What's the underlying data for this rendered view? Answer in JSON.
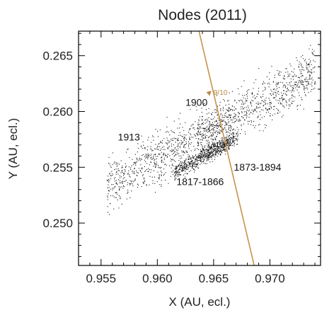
{
  "chart_data": {
    "type": "scatter",
    "title": "Nodes (2011)",
    "xlabel": "X (AU, ecl.)",
    "ylabel": "Y (AU, ecl.)",
    "xlim": [
      0.953,
      0.9745
    ],
    "ylim": [
      0.2462,
      0.2672
    ],
    "x_ticks": [
      "0.955",
      "0.960",
      "0.965",
      "0.970"
    ],
    "y_ticks": [
      "0.250",
      "0.255",
      "0.260",
      "0.265"
    ],
    "x_tick_values": [
      0.955,
      0.96,
      0.965,
      0.97
    ],
    "y_tick_values": [
      0.25,
      0.255,
      0.26,
      0.265
    ],
    "grid": false,
    "point_color": "#111111",
    "orbit_color": "#c8914a",
    "orbit_line": {
      "x": [
        0.9637,
        0.9686
      ],
      "y": [
        0.2672,
        0.2462
      ]
    },
    "clusters": [
      {
        "label": "1913",
        "center": [
          0.963,
          0.2575
        ],
        "x_range": [
          0.9555,
          0.974
        ],
        "slope": 0.56,
        "spread_y": 0.0011,
        "count": 1400
      },
      {
        "label": "1900",
        "center": [
          0.9649,
          0.2586
        ],
        "x_range": [
          0.9635,
          0.9665
        ],
        "slope": 0.45,
        "spread_y": 0.0006,
        "count": 120
      },
      {
        "label": "1817-1866",
        "center": [
          0.9632,
          0.2555
        ],
        "x_range": [
          0.9615,
          0.9665
        ],
        "slope": 0.56,
        "spread_y": 0.00035,
        "count": 550
      },
      {
        "label": "1873-1894",
        "center": [
          0.9655,
          0.257
        ],
        "x_range": [
          0.964,
          0.9672
        ],
        "slope": 0.5,
        "spread_y": 0.0004,
        "count": 230
      }
    ],
    "annotations": [
      {
        "text": "1913",
        "x": 0.9565,
        "y": 0.2574
      },
      {
        "text": "1900",
        "x": 0.9625,
        "y": 0.2605
      },
      {
        "text": "1873-1894",
        "x": 0.9668,
        "y": 0.2547
      },
      {
        "text": "1817-1866",
        "x": 0.9617,
        "y": 0.2534
      },
      {
        "text": "9/10",
        "x": 0.965,
        "y": 0.2615,
        "color": "#b8863f"
      }
    ],
    "marker": {
      "x": 0.9646,
      "y": 0.2616,
      "color": "#b8863f"
    }
  }
}
